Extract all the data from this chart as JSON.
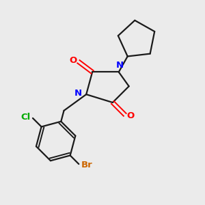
{
  "bg_color": "#ebebeb",
  "bond_color": "#1a1a1a",
  "N_color": "#0000ff",
  "O_color": "#ff0000",
  "Cl_color": "#00aa00",
  "Br_color": "#cc6600",
  "line_width": 1.6,
  "figsize": [
    3.0,
    3.0
  ],
  "dpi": 100,
  "xlim": [
    0,
    10
  ],
  "ylim": [
    0,
    10
  ]
}
